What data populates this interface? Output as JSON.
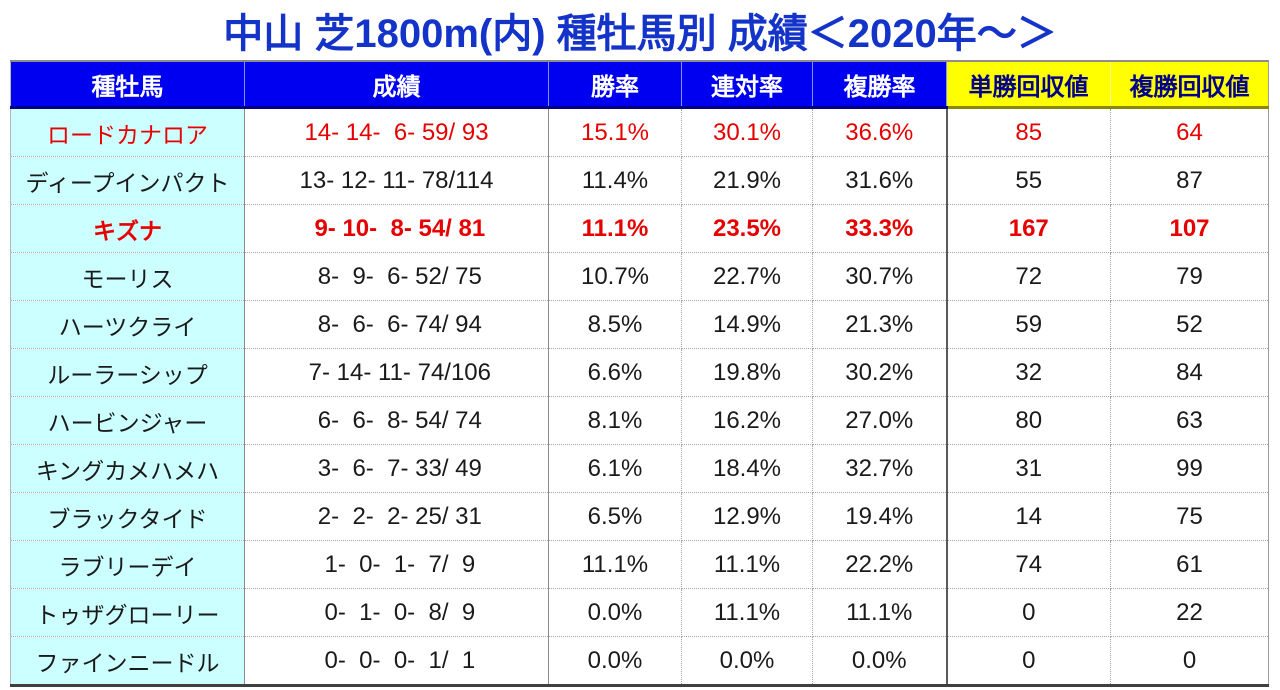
{
  "colors": {
    "title_blue": "#1433c8",
    "header_blue": "#0000f0",
    "header_yellow": "#ffff00",
    "yellow_header_text": "#00008b",
    "sire_column_bg": "#ccffff",
    "highlight_red": "#e60000",
    "body_text": "#1a1a1a"
  },
  "chart_data": {
    "type": "table",
    "title": "中山 芝1800m(内) 種牡馬別 成績＜2020年～＞",
    "columns": [
      "種牡馬",
      "成績",
      "勝率",
      "連対率",
      "複勝率",
      "単勝回収値",
      "複勝回収値"
    ],
    "column_styles": [
      "blue",
      "blue",
      "blue",
      "blue",
      "blue",
      "yellow",
      "yellow"
    ],
    "row_keys": [
      "name",
      "record",
      "win_rate",
      "quinella_rate",
      "show_rate",
      "win_payback",
      "show_payback"
    ],
    "rows": [
      {
        "name": "ロードカナロア",
        "record": "14- 14-  6- 59/ 93",
        "win_rate": "15.1%",
        "quinella_rate": "30.1%",
        "show_rate": "36.6%",
        "win_payback": "85",
        "show_payback": "64",
        "style": "red"
      },
      {
        "name": "ディープインパクト",
        "record": "13- 12- 11- 78/114",
        "win_rate": "11.4%",
        "quinella_rate": "21.9%",
        "show_rate": "31.6%",
        "win_payback": "55",
        "show_payback": "87",
        "style": "normal"
      },
      {
        "name": "キズナ",
        "record": " 9- 10-  8- 54/ 81",
        "win_rate": "11.1%",
        "quinella_rate": "23.5%",
        "show_rate": "33.3%",
        "win_payback": "167",
        "show_payback": "107",
        "style": "red-bold"
      },
      {
        "name": "モーリス",
        "record": " 8-  9-  6- 52/ 75",
        "win_rate": "10.7%",
        "quinella_rate": "22.7%",
        "show_rate": "30.7%",
        "win_payback": "72",
        "show_payback": "79",
        "style": "normal"
      },
      {
        "name": "ハーツクライ",
        "record": " 8-  6-  6- 74/ 94",
        "win_rate": "8.5%",
        "quinella_rate": "14.9%",
        "show_rate": "21.3%",
        "win_payback": "59",
        "show_payback": "52",
        "style": "normal"
      },
      {
        "name": "ルーラーシップ",
        "record": " 7- 14- 11- 74/106",
        "win_rate": "6.6%",
        "quinella_rate": "19.8%",
        "show_rate": "30.2%",
        "win_payback": "32",
        "show_payback": "84",
        "style": "normal"
      },
      {
        "name": "ハービンジャー",
        "record": " 6-  6-  8- 54/ 74",
        "win_rate": "8.1%",
        "quinella_rate": "16.2%",
        "show_rate": "27.0%",
        "win_payback": "80",
        "show_payback": "63",
        "style": "normal"
      },
      {
        "name": "キングカメハメハ",
        "record": " 3-  6-  7- 33/ 49",
        "win_rate": "6.1%",
        "quinella_rate": "18.4%",
        "show_rate": "32.7%",
        "win_payback": "31",
        "show_payback": "99",
        "style": "normal"
      },
      {
        "name": "ブラックタイド",
        "record": " 2-  2-  2- 25/ 31",
        "win_rate": "6.5%",
        "quinella_rate": "12.9%",
        "show_rate": "19.4%",
        "win_payback": "14",
        "show_payback": "75",
        "style": "normal"
      },
      {
        "name": "ラブリーデイ",
        "record": " 1-  0-  1-  7/  9",
        "win_rate": "11.1%",
        "quinella_rate": "11.1%",
        "show_rate": "22.2%",
        "win_payback": "74",
        "show_payback": "61",
        "style": "normal"
      },
      {
        "name": "トゥザグローリー",
        "record": " 0-  1-  0-  8/  9",
        "win_rate": "0.0%",
        "quinella_rate": "11.1%",
        "show_rate": "11.1%",
        "win_payback": "0",
        "show_payback": "22",
        "style": "normal"
      },
      {
        "name": "ファインニードル",
        "record": " 0-  0-  0-  1/  1",
        "win_rate": "0.0%",
        "quinella_rate": "0.0%",
        "show_rate": "0.0%",
        "win_payback": "0",
        "show_payback": "0",
        "style": "normal"
      }
    ]
  }
}
